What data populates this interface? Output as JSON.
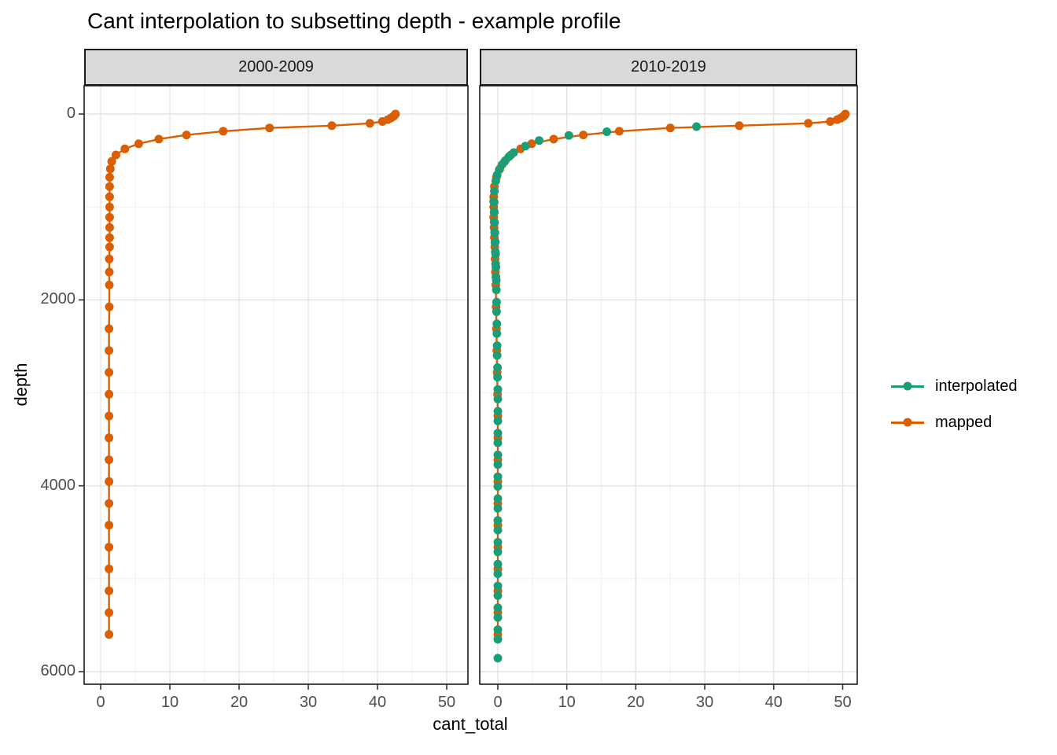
{
  "title": "Cant interpolation to subsetting depth - example profile",
  "facets": [
    {
      "label": "2000-2009"
    },
    {
      "label": "2010-2019"
    }
  ],
  "axes": {
    "x": {
      "title": "cant_total",
      "ticks": [
        "0",
        "10",
        "20",
        "30",
        "40",
        "50"
      ]
    },
    "y": {
      "title": "depth",
      "ticks": [
        "0",
        "2000",
        "4000",
        "6000"
      ]
    }
  },
  "legend": {
    "entries": [
      {
        "label": "interpolated",
        "color": "#1B9E77"
      },
      {
        "label": "mapped",
        "color": "#D95F02"
      }
    ]
  },
  "chart_data": {
    "type": "scatter",
    "title": "Cant interpolation to subsetting depth - example profile",
    "xlabel": "cant_total",
    "ylabel": "depth",
    "x_axis": {
      "range": [
        -2.4,
        53
      ],
      "major_ticks": [
        0,
        10,
        20,
        30,
        40,
        50
      ],
      "minor_gridlines": [
        5,
        15,
        25,
        35,
        45
      ]
    },
    "y_axis": {
      "range": [
        -300,
        6150
      ],
      "reversed": true,
      "major_ticks": [
        0,
        2000,
        4000,
        6000
      ],
      "minor_gridlines": [
        1000,
        3000,
        5000
      ]
    },
    "grid": true,
    "legend_position": "right",
    "facets": [
      {
        "label": "2000-2009",
        "series": [
          {
            "name": "mapped",
            "color": "#D95F02",
            "line": true,
            "depth": [
              0,
              10,
              20,
              30,
              45,
              60,
              80,
              100,
              125,
              150,
              185,
              225,
              270,
              320,
              375,
              440,
              510,
              590,
              680,
              780,
              890,
              1000,
              1110,
              1220,
              1330,
              1430,
              1560,
              1700,
              1840,
              2075,
              2310,
              2545,
              2780,
              3015,
              3250,
              3485,
              3720,
              3955,
              4190,
              4425,
              4660,
              4895,
              5130,
              5365,
              5600
            ],
            "cant": [
              42.6,
              42.5,
              42.4,
              42.2,
              41.9,
              41.5,
              40.7,
              38.9,
              33.4,
              24.4,
              17.7,
              12.4,
              8.4,
              5.5,
              3.5,
              2.2,
              1.6,
              1.4,
              1.3,
              1.3,
              1.3,
              1.3,
              1.3,
              1.3,
              1.3,
              1.3,
              1.25,
              1.25,
              1.25,
              1.25,
              1.2,
              1.2,
              1.2,
              1.2,
              1.2,
              1.2,
              1.2,
              1.2,
              1.2,
              1.2,
              1.2,
              1.2,
              1.2,
              1.2,
              1.2
            ]
          }
        ]
      },
      {
        "label": "2010-2019",
        "series": [
          {
            "name": "mapped",
            "color": "#D95F02",
            "line": true,
            "depth": [
              0,
              10,
              20,
              30,
              45,
              60,
              80,
              100,
              125,
              150,
              185,
              225,
              270,
              320,
              375,
              440,
              510,
              590,
              680,
              780,
              890,
              1000,
              1110,
              1220,
              1330,
              1430,
              1560,
              1700,
              1840,
              2075,
              2310,
              2545,
              2780,
              3015,
              3250,
              3485,
              3720,
              3955,
              4190,
              4425,
              4660,
              4895,
              5130,
              5365,
              5600
            ],
            "cant": [
              50.4,
              50.3,
              50.2,
              50.0,
              49.7,
              49.2,
              48.2,
              45.0,
              35.0,
              25.0,
              17.6,
              12.4,
              8.1,
              4.9,
              3.3,
              1.9,
              1.0,
              0.3,
              -0.2,
              -0.5,
              -0.6,
              -0.6,
              -0.6,
              -0.55,
              -0.5,
              -0.45,
              -0.4,
              -0.35,
              -0.3,
              -0.25,
              -0.2,
              -0.15,
              -0.1,
              -0.05,
              0.0,
              0.0,
              0.0,
              0.0,
              0.0,
              0.0,
              0.0,
              0.0,
              0.0,
              0.0,
              0.0
            ]
          },
          {
            "name": "interpolated",
            "color": "#1B9E77",
            "line": false,
            "depth": [
              135,
              190,
              230,
              285,
              345,
              415,
              460,
              500,
              545,
              600,
              655,
              720,
              830,
              940,
              948,
              1052,
              1058,
              1162,
              1168,
              1272,
              1278,
              1382,
              1378,
              1482,
              1508,
              1612,
              1648,
              1752,
              1788,
              1892,
              2023,
              2127,
              2258,
              2362,
              2493,
              2597,
              2728,
              2832,
              2963,
              3067,
              3198,
              3302,
              3433,
              3537,
              3668,
              3772,
              3903,
              4007,
              4138,
              4242,
              4373,
              4477,
              4608,
              4712,
              4843,
              4947,
              5078,
              5182,
              5313,
              5417,
              5548,
              5652,
              5855
            ],
            "cant": [
              28.8,
              15.8,
              10.3,
              6.0,
              4.0,
              2.3,
              1.6,
              1.1,
              0.6,
              0.2,
              -0.1,
              -0.3,
              -0.5,
              -0.6,
              -0.52,
              -0.52,
              -0.52,
              -0.52,
              -0.47,
              -0.47,
              -0.42,
              -0.42,
              -0.37,
              -0.37,
              -0.32,
              -0.32,
              -0.27,
              -0.27,
              -0.22,
              -0.22,
              -0.18,
              -0.18,
              -0.14,
              -0.14,
              -0.1,
              -0.1,
              -0.05,
              -0.05,
              0,
              0,
              0,
              0,
              0,
              0,
              0,
              0,
              0,
              0,
              0,
              0,
              0,
              0,
              0,
              0,
              0,
              0,
              0,
              0,
              0,
              0,
              0,
              0,
              0
            ]
          }
        ]
      }
    ]
  }
}
